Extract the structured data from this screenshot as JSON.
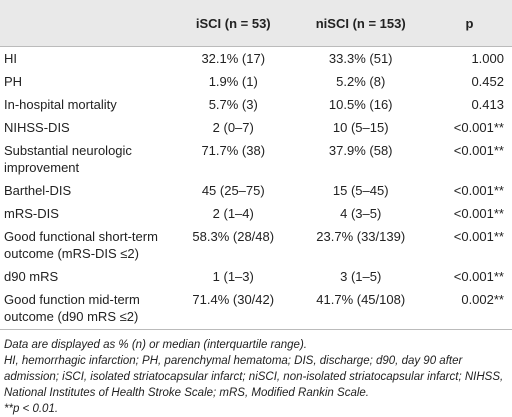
{
  "table": {
    "columns": [
      "iSCI (n = 53)",
      "niSCI (n = 153)",
      "p"
    ],
    "rows": [
      [
        "HI",
        "32.1% (17)",
        "33.3% (51)",
        "1.000"
      ],
      [
        "PH",
        "1.9% (1)",
        "5.2% (8)",
        "0.452"
      ],
      [
        "In-hospital mortality",
        "5.7% (3)",
        "10.5% (16)",
        "0.413"
      ],
      [
        "NIHSS-DIS",
        "2 (0–7)",
        "10 (5–15)",
        "<0.001**"
      ],
      [
        "Substantial neurologic improvement",
        "71.7% (38)",
        "37.9% (58)",
        "<0.001**"
      ],
      [
        "Barthel-DIS",
        "45 (25–75)",
        "15 (5–45)",
        "<0.001**"
      ],
      [
        "mRS-DIS",
        "2 (1–4)",
        "4 (3–5)",
        "<0.001**"
      ],
      [
        "Good functional short-term outcome (mRS-DIS ≤2)",
        "58.3% (28/48)",
        "23.7% (33/139)",
        "<0.001**"
      ],
      [
        "d90 mRS",
        "1 (1–3)",
        "3 (1–5)",
        "<0.001**"
      ],
      [
        "Good function mid-term outcome (d90 mRS ≤2)",
        "71.4% (30/42)",
        "41.7% (45/108)",
        "0.002**"
      ]
    ]
  },
  "footnotes": [
    "Data are displayed as % (n) or median (interquartile range).",
    "HI, hemorrhagic infarction; PH, parenchymal hematoma; DIS, discharge; d90, day 90 after admission; iSCI, isolated striatocapsular infarct; niSCI, non-isolated striatocapsular infarct; NIHSS, National Institutes of Health Stroke Scale; mRS, Modified Rankin Scale.",
    "**p < 0.01."
  ]
}
